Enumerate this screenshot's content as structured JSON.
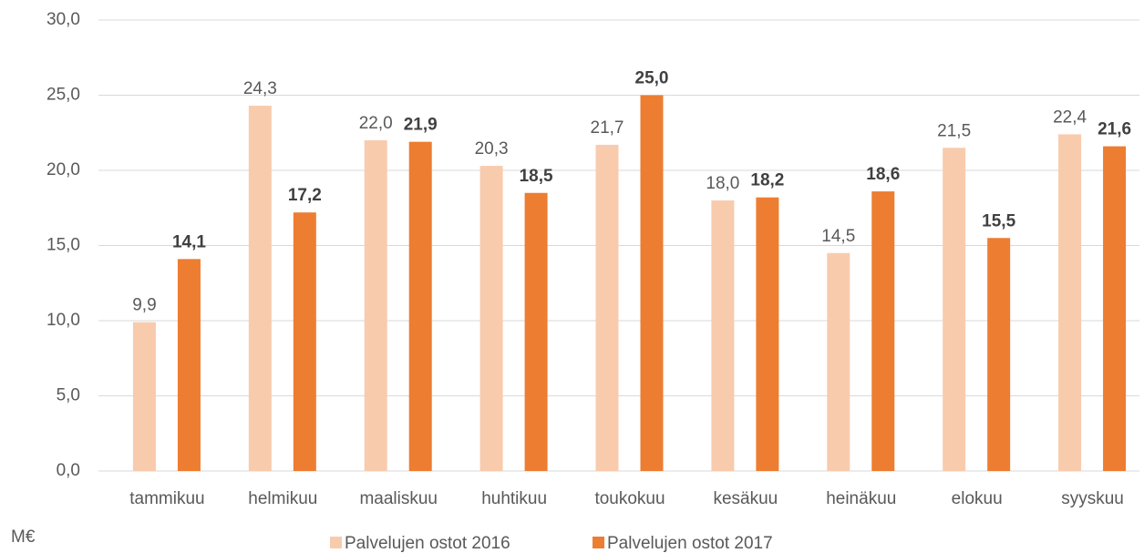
{
  "chart_data": {
    "type": "bar",
    "y_label": "M€",
    "categories": [
      "tammikuu",
      "helmikuu",
      "maaliskuu",
      "huhtikuu",
      "toukokuu",
      "kesäkuu",
      "heinäkuu",
      "elokuu",
      "syyskuu"
    ],
    "series": [
      {
        "name": "Palvelujen ostot 2016",
        "color": "#f8cbad",
        "values": [
          9.9,
          24.3,
          22.0,
          20.3,
          21.7,
          18.0,
          14.5,
          21.5,
          22.4
        ],
        "value_labels": [
          "9,9",
          "24,3",
          "22,0",
          "20,3",
          "21,7",
          "18,0",
          "14,5",
          "21,5",
          "22,4"
        ]
      },
      {
        "name": "Palvelujen ostot 2017",
        "color": "#ed7d31",
        "values": [
          14.1,
          17.2,
          21.9,
          18.5,
          25.0,
          18.2,
          18.6,
          15.5,
          21.6
        ],
        "value_labels": [
          "14,1",
          "17,2",
          "21,9",
          "18,5",
          "25,0",
          "18,2",
          "18,6",
          "15,5",
          "21,6"
        ]
      }
    ],
    "ylim": [
      0,
      30
    ],
    "yticks": [
      {
        "value": 0,
        "label": "0,0"
      },
      {
        "value": 5,
        "label": "5,0"
      },
      {
        "value": 10,
        "label": "10,0"
      },
      {
        "value": 15,
        "label": "15,0"
      },
      {
        "value": 20,
        "label": "20,0"
      },
      {
        "value": 25,
        "label": "25,0"
      },
      {
        "value": 30,
        "label": "30,0"
      }
    ],
    "grid": true,
    "legend": "bottom"
  }
}
